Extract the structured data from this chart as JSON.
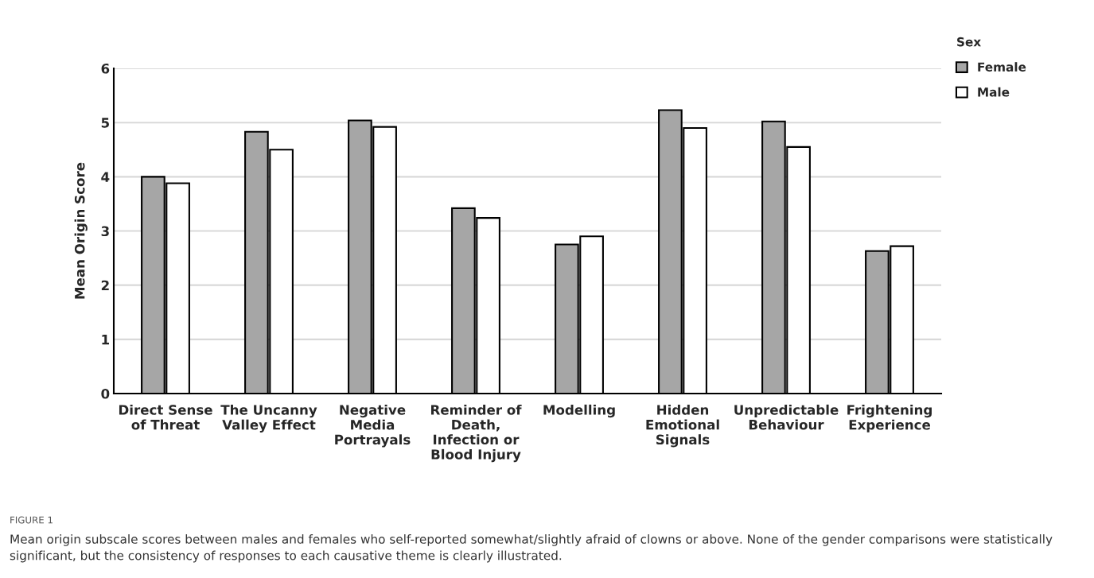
{
  "chart_data": {
    "type": "bar",
    "categories": [
      "Direct Sense\nof Threat",
      "The Uncanny\nValley Effect",
      "Negative\nMedia\nPortrayals",
      "Reminder of\nDeath,\nInfection or\nBlood Injury",
      "Modelling",
      "Hidden\nEmotional\nSignals",
      "Unpredictable\nBehaviour",
      "Frightening\nExperience"
    ],
    "series": [
      {
        "name": "Female",
        "color": "#a6a6a6",
        "values": [
          4.0,
          4.83,
          5.04,
          3.42,
          2.75,
          5.23,
          5.02,
          2.63
        ]
      },
      {
        "name": "Male",
        "color": "#ffffff",
        "values": [
          3.88,
          4.5,
          4.92,
          3.24,
          2.9,
          4.9,
          4.55,
          2.72
        ]
      }
    ],
    "ylabel": "Mean Origin Score",
    "legend_title": "Sex",
    "legend": "top right",
    "ylim": [
      0,
      6
    ],
    "yticks": [
      0,
      1,
      2,
      3,
      4,
      5,
      6
    ],
    "grid": "y",
    "annotations": [
      "FIGURE 1",
      "Mean origin subscale scores between males and females who self-reported somewhat/slightly afraid of clowns or above. None of the gender comparisons were statistically significant, but the consistency of responses to each causative theme is clearly illustrated."
    ]
  }
}
